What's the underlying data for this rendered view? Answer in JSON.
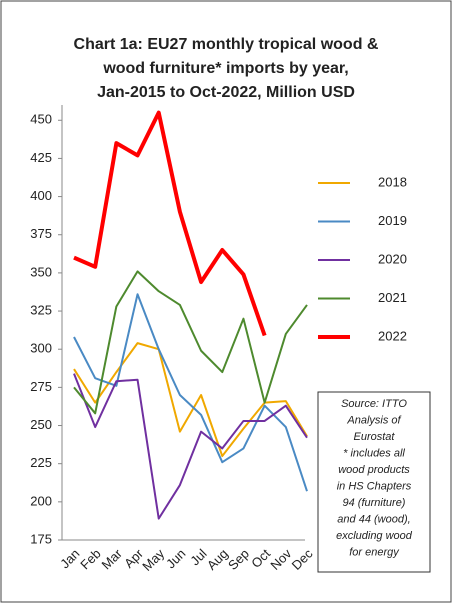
{
  "chart_data": {
    "type": "line",
    "title": [
      "Chart 1a: EU27 monthly tropical wood &",
      "wood furniture* imports by year,",
      "Jan-2015 to Oct-2022, Million USD"
    ],
    "categories": [
      "Jan",
      "Feb",
      "Mar",
      "Apr",
      "May",
      "Jun",
      "Jul",
      "Aug",
      "Sep",
      "Oct",
      "Nov",
      "Dec"
    ],
    "series": [
      {
        "name": "2018",
        "color": "#f0a800",
        "values": [
          287,
          265,
          285,
          304,
          300,
          246,
          270,
          230,
          248,
          265,
          266,
          243
        ]
      },
      {
        "name": "2019",
        "color": "#4a8ac4",
        "values": [
          308,
          281,
          276,
          336,
          300,
          270,
          257,
          226,
          235,
          263,
          249,
          207
        ]
      },
      {
        "name": "2020",
        "color": "#7030a0",
        "values": [
          284,
          249,
          279,
          280,
          189,
          211,
          246,
          235,
          253,
          253,
          263,
          242
        ]
      },
      {
        "name": "2021",
        "color": "#4e8a2e",
        "values": [
          275,
          258,
          328,
          351,
          338,
          329,
          299,
          285,
          320,
          265,
          310,
          329
        ]
      },
      {
        "name": "2022",
        "color": "#ff0000",
        "values": [
          360,
          354,
          435,
          427,
          455,
          390,
          344,
          365,
          349,
          309,
          null,
          null
        ]
      }
    ],
    "ylim": [
      175,
      460
    ],
    "yticks": [
      175,
      200,
      225,
      250,
      275,
      300,
      325,
      350,
      375,
      400,
      425,
      450
    ],
    "annotation": [
      "Source: ITTO",
      "Analysis of",
      "Eurostat",
      "* includes all",
      "wood products",
      "in HS Chapters",
      "94 (furniture)",
      "and 44 (wood),",
      "excluding wood",
      "for energy"
    ]
  }
}
